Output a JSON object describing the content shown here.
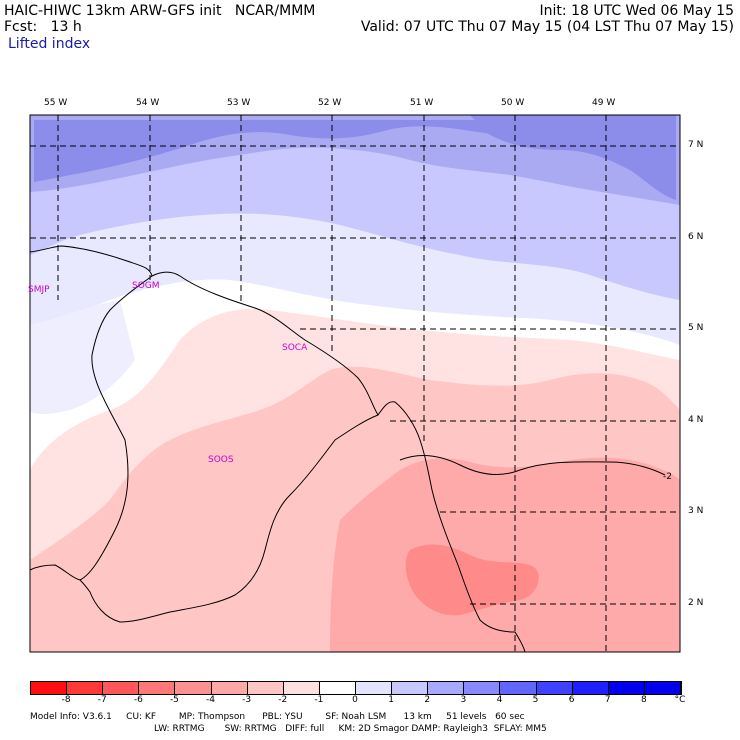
{
  "header": {
    "model_line": "HAIC-HIWC 13km ARW-GFS init   NCAR/MMM",
    "fcst_line": "Fcst:   13 h",
    "field_name": "Lifted index",
    "init_line": "Init: 18 UTC Wed 06 May 15",
    "valid_line": "Valid: 07 UTC Thu 07 May 15 (04 LST Thu 07 May 15)"
  },
  "map": {
    "lon_labels": [
      "55 W",
      "54 W",
      "53 W",
      "52 W",
      "51 W",
      "50 W",
      "49 W"
    ],
    "lat_labels": [
      "7 N",
      "6 N",
      "5 N",
      "4 N",
      "3 N",
      "2 N"
    ],
    "stations": [
      "SMJP",
      "SOGM",
      "SOCA",
      "SOOS"
    ],
    "contour_label": "-2"
  },
  "colorbar": {
    "colors": [
      "#ff1010",
      "#ff3838",
      "#ff5858",
      "#ff7878",
      "#ff9090",
      "#ffa8a8",
      "#ffc4c4",
      "#ffe0e0",
      "#ffffff",
      "#e4e4ff",
      "#c8c8ff",
      "#a8a8ff",
      "#8888ff",
      "#6464ff",
      "#4040ff",
      "#2020ff",
      "#0000ee"
    ],
    "labels": [
      "-8",
      "-7",
      "-6",
      "-5",
      "-4",
      "-3",
      "-2",
      "-1",
      "0",
      "1",
      "2",
      "3",
      "4",
      "5",
      "6",
      "7",
      "8"
    ],
    "unit": "°C"
  },
  "footer": {
    "line1": "Model Info: V3.6.1     CU: KF        MP: Thompson      PBL: YSU        SF: Noah LSM      13 km     51 levels   60 sec",
    "line2": "LW: RRTMG       SW: RRTMG   DIFF: full     KM: 2D Smagor DAMP: Rayleigh3  SFLAY: MM5"
  }
}
